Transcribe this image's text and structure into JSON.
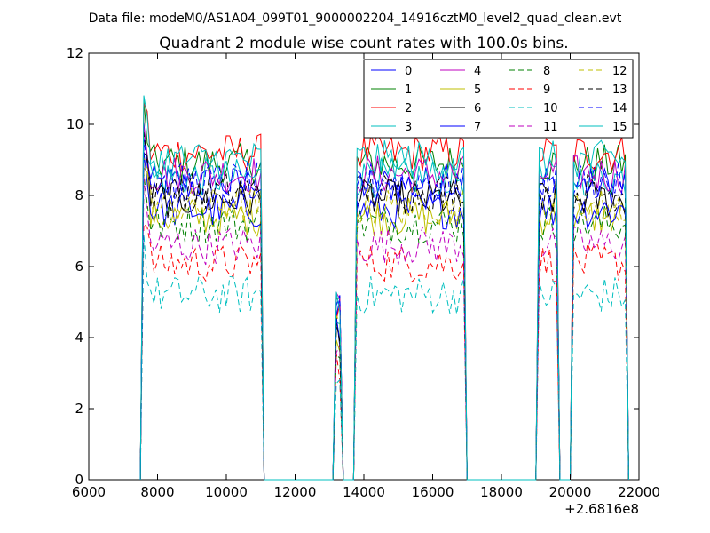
{
  "figure": {
    "suptitle": "Data file: modeM0/AS1A04_099T01_9000002204_14916cztM0_level2_quad_clean.evt",
    "offset_label": "+2.6816e8"
  },
  "chart_data": {
    "type": "line",
    "title": "Quadrant 2 module wise count rates with 100.0s bins.",
    "xlabel": "",
    "ylabel": "",
    "xlim": [
      6000,
      22000
    ],
    "ylim": [
      0,
      12
    ],
    "x_ticks": [
      "6000",
      "8000",
      "10000",
      "12000",
      "14000",
      "16000",
      "18000",
      "20000",
      "22000"
    ],
    "y_ticks": [
      "0",
      "2",
      "4",
      "6",
      "8",
      "10",
      "12"
    ],
    "legend_position": "top-right",
    "grid": false,
    "segments": [
      {
        "start": 7600,
        "end": 11000
      },
      {
        "start": 13200,
        "end": 13300
      },
      {
        "start": 13800,
        "end": 16900
      },
      {
        "start": 19100,
        "end": 19600
      },
      {
        "start": 20100,
        "end": 21600
      }
    ],
    "series": [
      {
        "name": "0",
        "color": "#0000ff",
        "dash": "solid",
        "level": 8.3
      },
      {
        "name": "1",
        "color": "#008000",
        "dash": "solid",
        "level": 8.9
      },
      {
        "name": "2",
        "color": "#ff0000",
        "dash": "solid",
        "level": 9.2
      },
      {
        "name": "3",
        "color": "#00bfbf",
        "dash": "solid",
        "level": 8.5
      },
      {
        "name": "4",
        "color": "#bf00bf",
        "dash": "solid",
        "level": 8.6
      },
      {
        "name": "5",
        "color": "#bfbf00",
        "dash": "solid",
        "level": 7.4
      },
      {
        "name": "6",
        "color": "#000000",
        "dash": "solid",
        "level": 7.9
      },
      {
        "name": "7",
        "color": "#0000ff",
        "dash": "solid",
        "level": 7.6
      },
      {
        "name": "8",
        "color": "#008000",
        "dash": "dashed",
        "level": 7.2
      },
      {
        "name": "9",
        "color": "#ff0000",
        "dash": "dashed",
        "level": 6.1
      },
      {
        "name": "10",
        "color": "#00bfbf",
        "dash": "dashed",
        "level": 5.2
      },
      {
        "name": "11",
        "color": "#bf00bf",
        "dash": "dashed",
        "level": 6.6
      },
      {
        "name": "12",
        "color": "#bfbf00",
        "dash": "dashed",
        "level": 7.7
      },
      {
        "name": "13",
        "color": "#000000",
        "dash": "dashed",
        "level": 8.1
      },
      {
        "name": "14",
        "color": "#0000ff",
        "dash": "dashed",
        "level": 8.4
      },
      {
        "name": "15",
        "color": "#00bfbf",
        "dash": "solid",
        "level": 9.0
      }
    ]
  }
}
